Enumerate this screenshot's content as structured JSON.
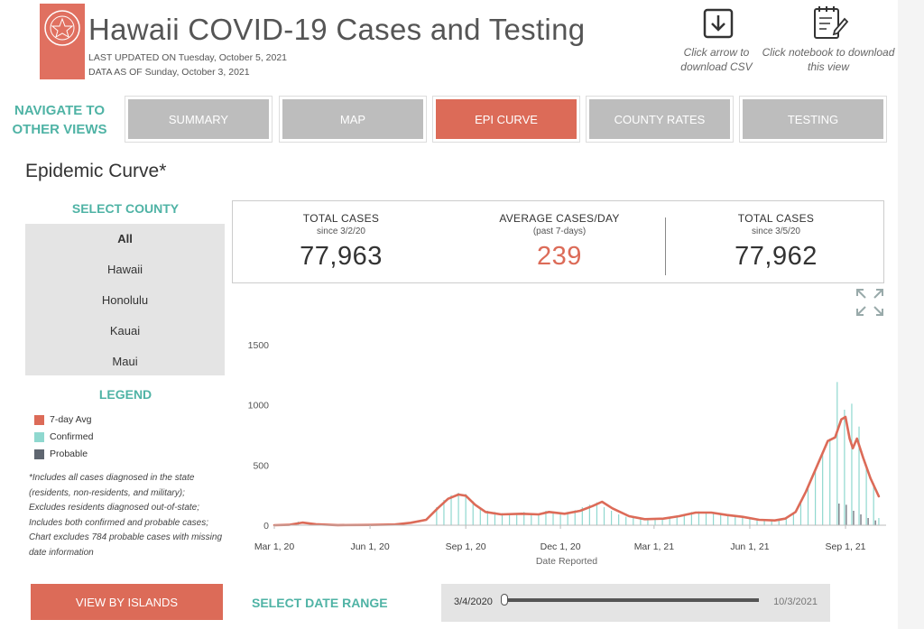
{
  "header": {
    "title": "Hawaii COVID-19 Cases and Testing",
    "last_updated": "LAST UPDATED ON Tuesday, October 5, 2021",
    "data_as_of": "DATA AS OF Sunday, October 3, 2021",
    "download_csv_caption": [
      "Click arrow to",
      "download CSV"
    ],
    "download_view_caption": [
      "Click notebook to download",
      "this view"
    ]
  },
  "nav": {
    "heading": [
      "NAVIGATE TO",
      "OTHER VIEWS"
    ],
    "buttons": [
      {
        "label": "SUMMARY",
        "active": false
      },
      {
        "label": "MAP",
        "active": false
      },
      {
        "label": "EPI CURVE",
        "active": true
      },
      {
        "label": "COUNTY RATES",
        "active": false
      },
      {
        "label": "TESTING",
        "active": false
      }
    ]
  },
  "section_title": "Epidemic Curve*",
  "county_select": {
    "heading": "SELECT COUNTY",
    "options": [
      "All",
      "Hawaii",
      "Honolulu",
      "Kauai",
      "Maui"
    ],
    "selected": "All"
  },
  "legend": {
    "heading": "LEGEND",
    "items": [
      {
        "label": "7-day Avg",
        "color": "#dc6b58"
      },
      {
        "label": "Confirmed",
        "color": "#8fd8cf"
      },
      {
        "label": "Probable",
        "color": "#5f6670"
      }
    ]
  },
  "footnote": "*Includes all cases diagnosed in the state (residents, non-residents, and military); Excludes residents diagnosed out-of-state; Includes both confirmed and probable cases; Chart excludes 784 probable cases with missing date information",
  "islands_button": "VIEW BY ISLANDS",
  "kpis": [
    {
      "label": "TOTAL CASES",
      "sub": "since 3/2/20",
      "value": "77,963"
    },
    {
      "label": "AVERAGE CASES/DAY",
      "sub": "(past 7-days)",
      "value": "239"
    },
    {
      "label": "TOTAL CASES",
      "sub": "since 3/5/20",
      "value": "77,962"
    }
  ],
  "date_range": {
    "label": "SELECT DATE RANGE",
    "start": "3/4/2020",
    "end": "10/3/2021"
  },
  "colors": {
    "accent": "#dc6b58",
    "teal": "#4fb3a5",
    "confirmed": "#8fd8cf",
    "probable": "#5f6670",
    "button_gray": "#bdbdbd"
  },
  "icons": [
    "hawaii-state-seal-icon",
    "download-arrow-icon",
    "notebook-pencil-icon",
    "expand-arrows-icon"
  ],
  "chart_data": {
    "type": "bar",
    "xlabel": "Date Reported",
    "ylabel": "",
    "x_ticks": [
      "Mar 1, 20",
      "Jun 1, 20",
      "Sep 1, 20",
      "Dec 1, 20",
      "Mar 1, 21",
      "Jun 1, 21",
      "Sep 1, 21"
    ],
    "y_ticks": [
      0,
      500,
      1000,
      1500
    ],
    "ylim": [
      0,
      1650
    ],
    "xlim": [
      "2020-03-01",
      "2021-10-10"
    ],
    "grid": false,
    "series": [
      {
        "name": "7-day Avg",
        "type": "line",
        "color": "#dc6b58",
        "points": [
          [
            "2020-03-01",
            0
          ],
          [
            "2020-03-15",
            3
          ],
          [
            "2020-03-28",
            22
          ],
          [
            "2020-04-10",
            8
          ],
          [
            "2020-05-01",
            1
          ],
          [
            "2020-06-01",
            2
          ],
          [
            "2020-06-25",
            6
          ],
          [
            "2020-07-10",
            20
          ],
          [
            "2020-07-25",
            45
          ],
          [
            "2020-08-05",
            140
          ],
          [
            "2020-08-15",
            220
          ],
          [
            "2020-08-25",
            255
          ],
          [
            "2020-09-01",
            245
          ],
          [
            "2020-09-10",
            170
          ],
          [
            "2020-09-20",
            110
          ],
          [
            "2020-10-05",
            90
          ],
          [
            "2020-10-25",
            95
          ],
          [
            "2020-11-10",
            90
          ],
          [
            "2020-11-20",
            110
          ],
          [
            "2020-12-05",
            95
          ],
          [
            "2020-12-20",
            120
          ],
          [
            "2021-01-01",
            160
          ],
          [
            "2021-01-10",
            195
          ],
          [
            "2021-01-20",
            140
          ],
          [
            "2021-02-05",
            75
          ],
          [
            "2021-02-20",
            50
          ],
          [
            "2021-03-10",
            55
          ],
          [
            "2021-03-25",
            75
          ],
          [
            "2021-04-10",
            105
          ],
          [
            "2021-04-25",
            105
          ],
          [
            "2021-05-10",
            85
          ],
          [
            "2021-05-25",
            70
          ],
          [
            "2021-06-10",
            45
          ],
          [
            "2021-06-25",
            40
          ],
          [
            "2021-07-05",
            55
          ],
          [
            "2021-07-15",
            110
          ],
          [
            "2021-07-25",
            280
          ],
          [
            "2021-08-05",
            500
          ],
          [
            "2021-08-15",
            700
          ],
          [
            "2021-08-22",
            730
          ],
          [
            "2021-08-28",
            880
          ],
          [
            "2021-09-01",
            900
          ],
          [
            "2021-09-05",
            720
          ],
          [
            "2021-09-08",
            640
          ],
          [
            "2021-09-12",
            720
          ],
          [
            "2021-09-18",
            560
          ],
          [
            "2021-09-25",
            390
          ],
          [
            "2021-10-03",
            240
          ]
        ]
      },
      {
        "name": "Confirmed",
        "type": "bar",
        "color": "#8fd8cf",
        "points": [
          [
            "2020-03-24",
            30
          ],
          [
            "2020-04-05",
            20
          ],
          [
            "2020-08-04",
            150
          ],
          [
            "2020-08-11",
            210
          ],
          [
            "2020-08-18",
            250
          ],
          [
            "2020-08-25",
            270
          ],
          [
            "2020-09-01",
            260
          ],
          [
            "2020-09-08",
            200
          ],
          [
            "2020-09-15",
            140
          ],
          [
            "2020-09-22",
            120
          ],
          [
            "2020-09-29",
            110
          ],
          [
            "2020-10-06",
            100
          ],
          [
            "2020-10-13",
            95
          ],
          [
            "2020-10-20",
            100
          ],
          [
            "2020-10-27",
            110
          ],
          [
            "2020-11-03",
            90
          ],
          [
            "2020-11-10",
            95
          ],
          [
            "2020-11-17",
            120
          ],
          [
            "2020-11-24",
            105
          ],
          [
            "2020-12-01",
            95
          ],
          [
            "2020-12-08",
            110
          ],
          [
            "2020-12-15",
            125
          ],
          [
            "2020-12-22",
            150
          ],
          [
            "2020-12-29",
            170
          ],
          [
            "2021-01-05",
            190
          ],
          [
            "2021-01-12",
            150
          ],
          [
            "2021-01-19",
            120
          ],
          [
            "2021-01-26",
            90
          ],
          [
            "2021-02-02",
            70
          ],
          [
            "2021-02-09",
            60
          ],
          [
            "2021-02-16",
            55
          ],
          [
            "2021-02-23",
            50
          ],
          [
            "2021-03-02",
            55
          ],
          [
            "2021-03-09",
            60
          ],
          [
            "2021-03-16",
            70
          ],
          [
            "2021-03-23",
            80
          ],
          [
            "2021-03-30",
            90
          ],
          [
            "2021-04-06",
            110
          ],
          [
            "2021-04-13",
            115
          ],
          [
            "2021-04-20",
            110
          ],
          [
            "2021-04-27",
            100
          ],
          [
            "2021-05-04",
            90
          ],
          [
            "2021-05-11",
            80
          ],
          [
            "2021-05-18",
            75
          ],
          [
            "2021-05-25",
            65
          ],
          [
            "2021-06-01",
            55
          ],
          [
            "2021-06-08",
            45
          ],
          [
            "2021-06-15",
            40
          ],
          [
            "2021-06-22",
            40
          ],
          [
            "2021-06-29",
            45
          ],
          [
            "2021-07-06",
            60
          ],
          [
            "2021-07-13",
            100
          ],
          [
            "2021-07-20",
            200
          ],
          [
            "2021-07-27",
            320
          ],
          [
            "2021-08-03",
            470
          ],
          [
            "2021-08-10",
            600
          ],
          [
            "2021-08-17",
            720
          ],
          [
            "2021-08-24",
            1190
          ],
          [
            "2021-08-31",
            960
          ],
          [
            "2021-09-07",
            1010
          ],
          [
            "2021-09-14",
            820
          ],
          [
            "2021-09-21",
            500
          ],
          [
            "2021-09-28",
            350
          ],
          [
            "2021-10-03",
            60
          ]
        ]
      },
      {
        "name": "Probable",
        "type": "bar",
        "color": "#5f6670",
        "points": [
          [
            "2021-08-24",
            180
          ],
          [
            "2021-08-31",
            170
          ],
          [
            "2021-09-07",
            120
          ],
          [
            "2021-09-14",
            90
          ],
          [
            "2021-09-21",
            60
          ],
          [
            "2021-09-28",
            40
          ]
        ]
      }
    ]
  }
}
